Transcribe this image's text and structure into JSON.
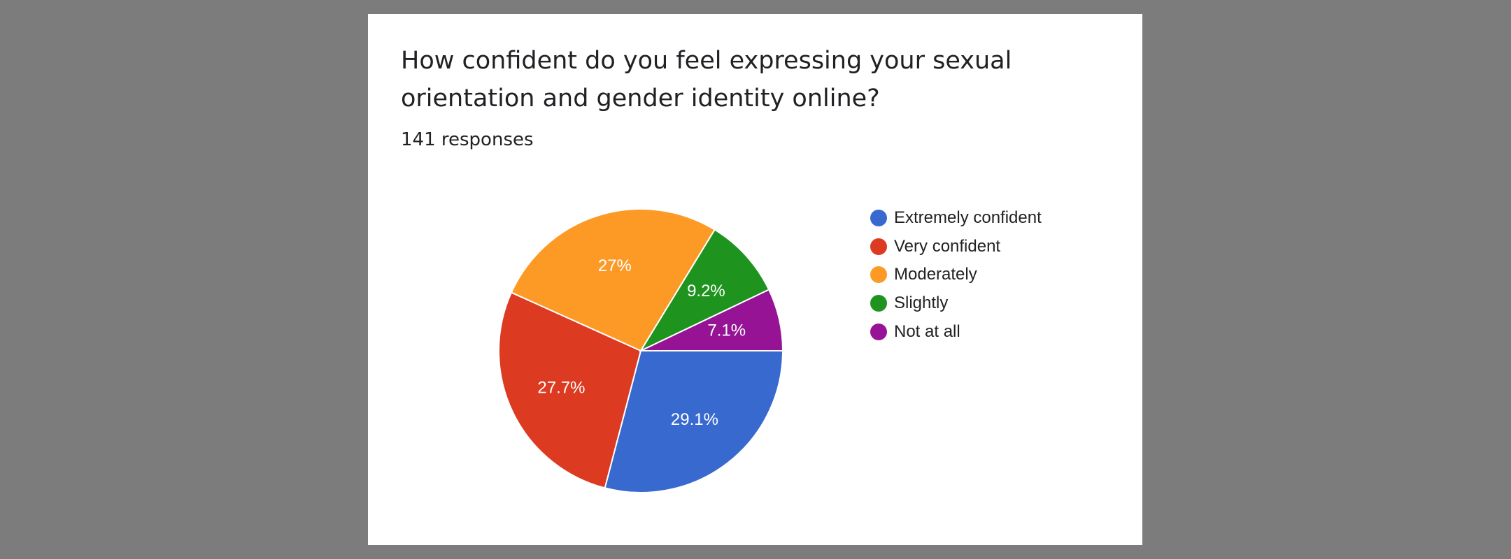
{
  "card": {
    "title": "How confident do you feel expressing your sexual orientation and gender identity online?",
    "responses": "141 responses"
  },
  "chart_data": {
    "type": "pie",
    "title": "How confident do you feel expressing your sexual orientation and gender identity online?",
    "subtitle": "141 responses",
    "legend_position": "right",
    "categories": [
      "Extremely confident",
      "Very confident",
      "Moderately",
      "Slightly",
      "Not at all"
    ],
    "values": [
      29.1,
      27.7,
      27.0,
      9.2,
      7.1
    ],
    "labels": [
      "29.1%",
      "27.7%",
      "27%",
      "9.2%",
      "7.1%"
    ],
    "colors": [
      "#3869cf",
      "#dc3a21",
      "#fd9a26",
      "#1e941e",
      "#961396"
    ]
  }
}
